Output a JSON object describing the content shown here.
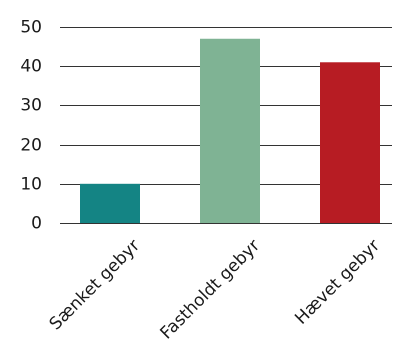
{
  "chart_data": {
    "type": "bar",
    "categories": [
      "Sænket gebyr",
      "Fastholdt gebyr",
      "Hævet gebyr"
    ],
    "values": [
      10,
      47,
      41
    ],
    "colors": [
      "#148484",
      "#7fb394",
      "#b71c23"
    ],
    "title": "",
    "xlabel": "",
    "ylabel": "",
    "ylim": [
      0,
      50
    ],
    "yticks": [
      0,
      10,
      20,
      30,
      40,
      50
    ],
    "grid": true,
    "legend": "none"
  }
}
